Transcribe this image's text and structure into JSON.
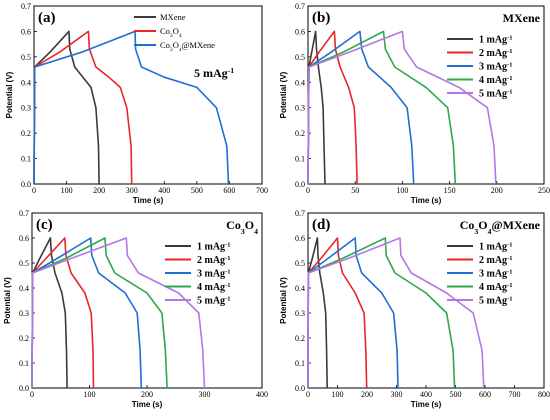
{
  "chart_data": [
    {
      "type": "line",
      "panel": "(a)",
      "title": "",
      "annotation": "5 mAg-1",
      "xlabel": "Time (s)",
      "ylabel": "Potential (V)",
      "xlim": [
        0,
        700
      ],
      "ylim": [
        0.0,
        0.7
      ],
      "xticks": [
        0,
        100,
        200,
        300,
        400,
        500,
        600,
        700
      ],
      "yticks": [
        0.0,
        0.1,
        0.2,
        0.3,
        0.4,
        0.5,
        0.6,
        0.7
      ],
      "legend_placement": "top-right",
      "series": [
        {
          "name": "MXene",
          "color": "#3a3a3a",
          "x": [
            0,
            2,
            50,
            107,
            110,
            125,
            150,
            175,
            190,
            198,
            200
          ],
          "y": [
            0,
            0.46,
            0.52,
            0.6,
            0.53,
            0.46,
            0.42,
            0.38,
            0.3,
            0.15,
            0
          ]
        },
        {
          "name": "Co3O4",
          "color": "#e8262a",
          "x": [
            0,
            2,
            80,
            167,
            170,
            190,
            230,
            265,
            285,
            298,
            300
          ],
          "y": [
            0,
            0.46,
            0.52,
            0.6,
            0.53,
            0.46,
            0.42,
            0.38,
            0.3,
            0.15,
            0
          ]
        },
        {
          "name": "Co3O4@MXene",
          "color": "#1f6fd1",
          "x": [
            0,
            2,
            150,
            310,
            312,
            330,
            400,
            500,
            560,
            592,
            597
          ],
          "y": [
            0,
            0.46,
            0.52,
            0.6,
            0.53,
            0.46,
            0.42,
            0.38,
            0.3,
            0.15,
            0
          ]
        }
      ]
    },
    {
      "type": "line",
      "panel": "(b)",
      "title": "MXene",
      "xlabel": "Time (s)",
      "ylabel": "Potential (V)",
      "xlim": [
        0,
        250
      ],
      "ylim": [
        0.0,
        0.7
      ],
      "xticks": [
        0,
        50,
        100,
        150,
        200,
        250
      ],
      "yticks": [
        0.0,
        0.1,
        0.2,
        0.3,
        0.4,
        0.5,
        0.6,
        0.7
      ],
      "legend_placement": "right",
      "series": [
        {
          "name": "1 mAg-1",
          "color": "#3a3a3a",
          "x": [
            0,
            1,
            4,
            8,
            9,
            11,
            14,
            16,
            17,
            18
          ],
          "y": [
            0,
            0.46,
            0.52,
            0.6,
            0.53,
            0.46,
            0.38,
            0.3,
            0.15,
            0
          ]
        },
        {
          "name": "2 mAg-1",
          "color": "#e8262a",
          "x": [
            0,
            1,
            12,
            28,
            29,
            34,
            43,
            49,
            51,
            52
          ],
          "y": [
            0,
            0.46,
            0.52,
            0.6,
            0.53,
            0.46,
            0.38,
            0.3,
            0.15,
            0
          ]
        },
        {
          "name": "3 mAg-1",
          "color": "#1f6fd1",
          "x": [
            0,
            1,
            25,
            55,
            57,
            64,
            88,
            105,
            110,
            112
          ],
          "y": [
            0,
            0.46,
            0.52,
            0.6,
            0.53,
            0.46,
            0.38,
            0.3,
            0.15,
            0
          ]
        },
        {
          "name": "4 mAg-1",
          "color": "#2ea84a",
          "x": [
            0,
            1,
            38,
            80,
            82,
            92,
            125,
            148,
            154,
            156
          ],
          "y": [
            0,
            0.46,
            0.52,
            0.6,
            0.53,
            0.46,
            0.38,
            0.3,
            0.15,
            0
          ]
        },
        {
          "name": "5 mAg-1",
          "color": "#b476e6",
          "x": [
            0,
            1,
            45,
            100,
            102,
            115,
            160,
            190,
            197,
            199
          ],
          "y": [
            0,
            0.46,
            0.52,
            0.6,
            0.53,
            0.46,
            0.38,
            0.3,
            0.15,
            0
          ]
        }
      ]
    },
    {
      "type": "line",
      "panel": "(c)",
      "title": "Co3O4",
      "xlabel": "Time (s)",
      "ylabel": "Potential (V)",
      "xlim": [
        0,
        400
      ],
      "ylim": [
        0.0,
        0.7
      ],
      "xticks": [
        0,
        100,
        200,
        300,
        400
      ],
      "yticks": [
        0.0,
        0.1,
        0.2,
        0.3,
        0.4,
        0.5,
        0.6,
        0.7
      ],
      "legend_placement": "right",
      "series": [
        {
          "name": "1 mAg-1",
          "color": "#3a3a3a",
          "x": [
            0,
            1,
            14,
            32,
            34,
            40,
            52,
            58,
            60,
            61
          ],
          "y": [
            0,
            0.46,
            0.52,
            0.6,
            0.53,
            0.46,
            0.38,
            0.3,
            0.15,
            0
          ]
        },
        {
          "name": "2 mAg-1",
          "color": "#e8262a",
          "x": [
            0,
            1,
            25,
            57,
            59,
            68,
            92,
            103,
            106,
            107
          ],
          "y": [
            0,
            0.46,
            0.52,
            0.6,
            0.53,
            0.46,
            0.38,
            0.3,
            0.15,
            0
          ]
        },
        {
          "name": "3 mAg-1",
          "color": "#1f6fd1",
          "x": [
            0,
            1,
            45,
            102,
            104,
            116,
            162,
            183,
            188,
            190
          ],
          "y": [
            0,
            0.46,
            0.52,
            0.6,
            0.53,
            0.46,
            0.38,
            0.3,
            0.15,
            0
          ]
        },
        {
          "name": "4 mAg-1",
          "color": "#2ea84a",
          "x": [
            0,
            1,
            60,
            127,
            129,
            144,
            200,
            226,
            232,
            235
          ],
          "y": [
            0,
            0.46,
            0.52,
            0.6,
            0.53,
            0.46,
            0.38,
            0.3,
            0.15,
            0
          ]
        },
        {
          "name": "5 mAg-1",
          "color": "#b476e6",
          "x": [
            0,
            1,
            70,
            164,
            166,
            185,
            255,
            290,
            297,
            300
          ],
          "y": [
            0,
            0.46,
            0.52,
            0.6,
            0.53,
            0.46,
            0.38,
            0.3,
            0.15,
            0
          ]
        }
      ]
    },
    {
      "type": "line",
      "panel": "(d)",
      "title": "Co3O4@MXene",
      "xlabel": "Time (s)",
      "ylabel": "Potential (V)",
      "xlim": [
        0,
        800
      ],
      "ylim": [
        0.0,
        0.7
      ],
      "xticks": [
        0,
        100,
        200,
        300,
        400,
        500,
        600,
        700,
        800
      ],
      "yticks": [
        0.0,
        0.1,
        0.2,
        0.3,
        0.4,
        0.5,
        0.6,
        0.7
      ],
      "legend_placement": "right",
      "series": [
        {
          "name": "1 mAg-1",
          "color": "#3a3a3a",
          "x": [
            0,
            1,
            15,
            32,
            34,
            40,
            52,
            60,
            63,
            65
          ],
          "y": [
            0,
            0.46,
            0.52,
            0.6,
            0.53,
            0.46,
            0.38,
            0.3,
            0.15,
            0
          ]
        },
        {
          "name": "2 mAg-1",
          "color": "#e8262a",
          "x": [
            0,
            1,
            45,
            100,
            103,
            117,
            160,
            190,
            196,
            199
          ],
          "y": [
            0,
            0.46,
            0.52,
            0.6,
            0.53,
            0.46,
            0.38,
            0.3,
            0.15,
            0
          ]
        },
        {
          "name": "3 mAg-1",
          "color": "#1f6fd1",
          "x": [
            0,
            1,
            70,
            160,
            163,
            182,
            250,
            290,
            302,
            305
          ],
          "y": [
            0,
            0.46,
            0.52,
            0.6,
            0.53,
            0.46,
            0.38,
            0.3,
            0.15,
            0
          ]
        },
        {
          "name": "4 mAg-1",
          "color": "#2ea84a",
          "x": [
            0,
            1,
            120,
            262,
            265,
            295,
            400,
            470,
            492,
            497
          ],
          "y": [
            0,
            0.46,
            0.52,
            0.6,
            0.53,
            0.46,
            0.38,
            0.3,
            0.15,
            0
          ]
        },
        {
          "name": "5 mAg-1",
          "color": "#b476e6",
          "x": [
            0,
            1,
            140,
            312,
            315,
            350,
            470,
            560,
            590,
            596
          ],
          "y": [
            0,
            0.46,
            0.52,
            0.6,
            0.53,
            0.46,
            0.38,
            0.3,
            0.15,
            0
          ]
        }
      ]
    }
  ]
}
